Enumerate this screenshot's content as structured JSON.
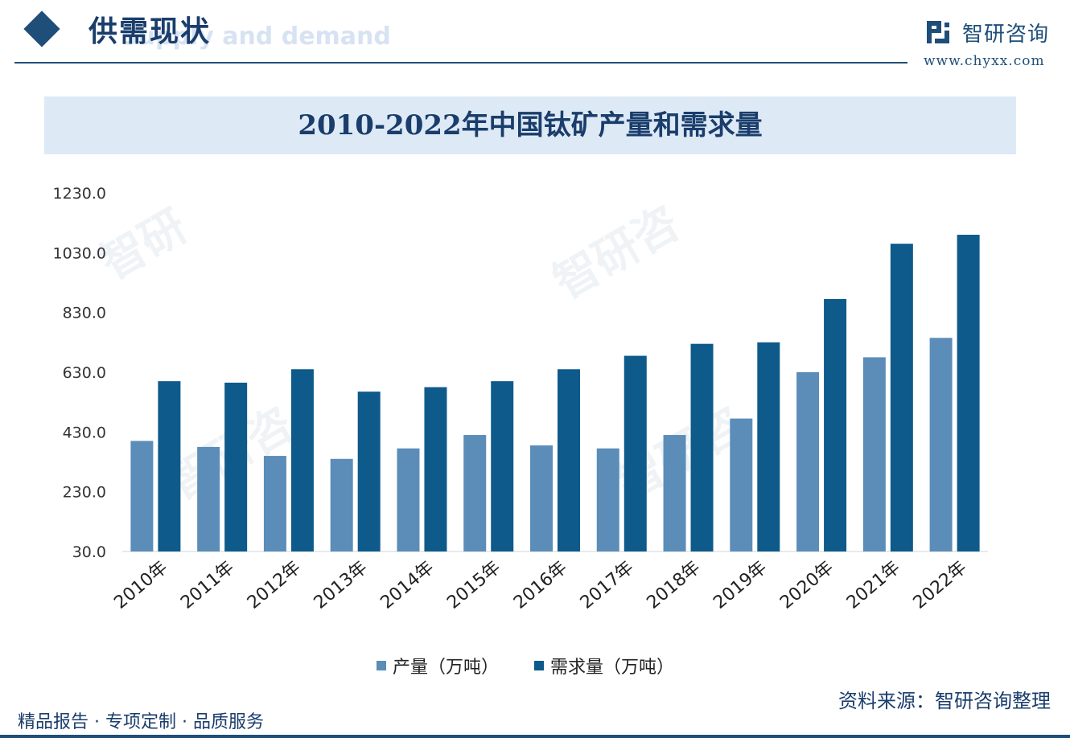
{
  "header": {
    "section_title": "供需现状",
    "section_subtitle": "Supply and demand",
    "brand_name": "智研咨询",
    "brand_url": "www.chyxx.com"
  },
  "footer": {
    "left_text": "精品报告 · 专项定制 · 品质服务",
    "source_text": "资料来源：智研咨询整理"
  },
  "colors": {
    "accent": "#1f4e79",
    "production": "#5b8db8",
    "demand": "#0e5a8a"
  },
  "chart_data": {
    "type": "bar",
    "title": "2010-2022年中国钛矿产量和需求量",
    "categories": [
      "2010年",
      "2011年",
      "2012年",
      "2013年",
      "2014年",
      "2015年",
      "2016年",
      "2017年",
      "2018年",
      "2019年",
      "2020年",
      "2021年",
      "2022年"
    ],
    "series": [
      {
        "name": "产量（万吨）",
        "values": [
          400,
          380,
          350,
          340,
          375,
          420,
          385,
          375,
          420,
          475,
          630,
          680,
          745
        ]
      },
      {
        "name": "需求量（万吨）",
        "values": [
          600,
          595,
          640,
          565,
          580,
          600,
          640,
          685,
          725,
          730,
          875,
          1060,
          1090
        ]
      }
    ],
    "yticks": [
      "30.0",
      "230.0",
      "430.0",
      "630.0",
      "830.0",
      "1030.0",
      "1230.0"
    ],
    "ylim": [
      30,
      1230
    ],
    "grid": false,
    "legend_position": "bottom"
  }
}
